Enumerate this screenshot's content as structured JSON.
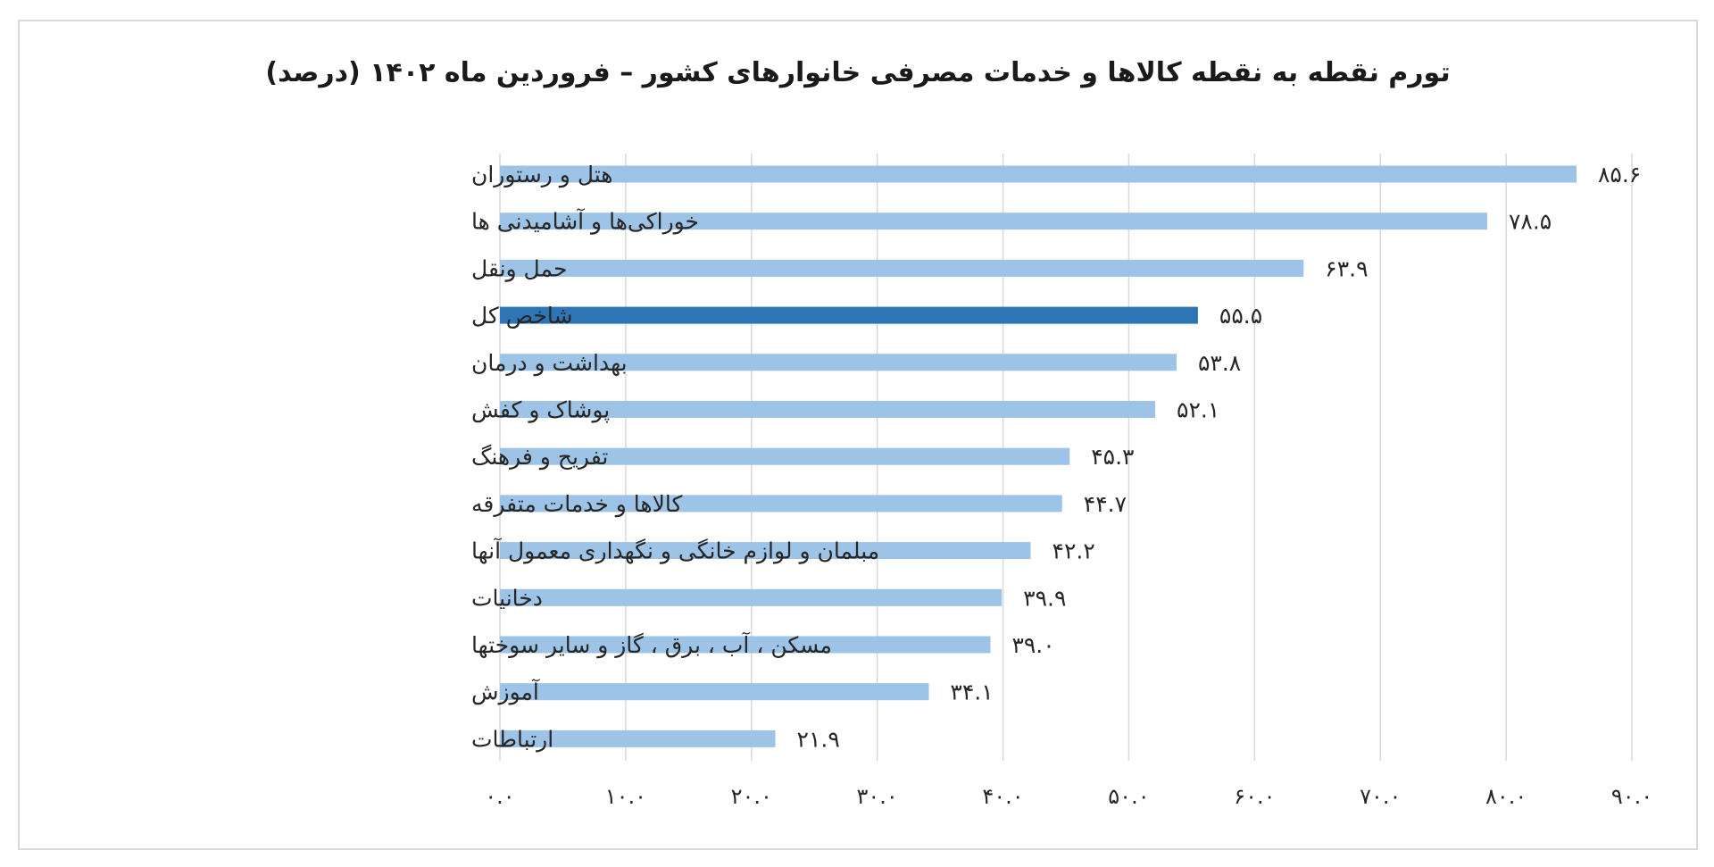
{
  "chart_data": {
    "type": "bar",
    "orientation": "horizontal",
    "title": "تورم نقطه به نقطه کالاها و خدمات مصرفی خانوارهای کشور – فروردین ماه ۱۴۰۲ (درصد)",
    "xlabel": "",
    "ylabel": "",
    "xlim": [
      0,
      90
    ],
    "grid": "vertical",
    "legend": "none",
    "categories": [
      "هتل و رستوران",
      "خوراکی‌ها و آشامیدنی ها",
      "حمل ونقل",
      "شاخص کل",
      "بهداشت و درمان",
      "پوشاک و کفش",
      "تفریح و فرهنگ",
      "کالاها و خدمات متفرقه",
      "مبلمان و لوازم خانگی و نگهداری معمول آنها",
      "دخانیات",
      "مسکن ، آب ، برق ، گاز و سایر سوختها",
      "آموزش",
      "ارتباطات"
    ],
    "values": [
      85.6,
      78.5,
      63.9,
      55.5,
      53.8,
      52.1,
      45.3,
      44.7,
      42.2,
      39.9,
      39.0,
      34.1,
      21.9
    ],
    "value_labels": [
      "۸۵.۶",
      "۷۸.۵",
      "۶۳.۹",
      "۵۵.۵",
      "۵۳.۸",
      "۵۲.۱",
      "۴۵.۳",
      "۴۴.۷",
      "۴۲.۲",
      "۳۹.۹",
      "۳۹.۰",
      "۳۴.۱",
      "۲۱.۹"
    ],
    "highlight_category": "شاخص کل",
    "x_ticks": [
      0,
      10,
      20,
      30,
      40,
      50,
      60,
      70,
      80,
      90
    ],
    "x_tick_labels": [
      "۰.۰",
      "۱۰.۰",
      "۲۰.۰",
      "۳۰.۰",
      "۴۰.۰",
      "۵۰.۰",
      "۶۰.۰",
      "۷۰.۰",
      "۸۰.۰",
      "۹۰.۰"
    ],
    "colors": {
      "bar": "#9dc3e6",
      "highlight": "#2e75b6",
      "grid": "#d9d9d9",
      "text": "#262626"
    }
  }
}
